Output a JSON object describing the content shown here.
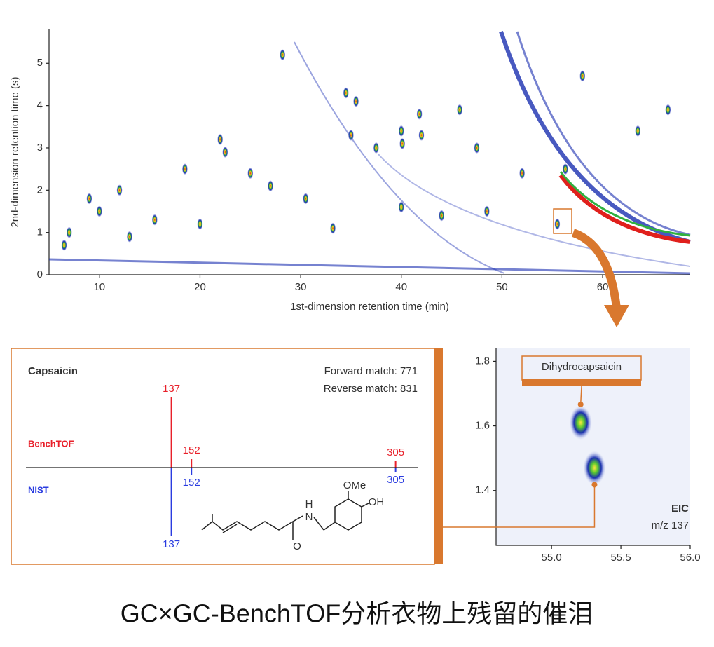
{
  "chart_data": [
    {
      "type": "heatmap",
      "x_label": "1st-dimension retention time (min)",
      "y_label": "2nd-dimension retention time (s)",
      "xlim": [
        5,
        68.7
      ],
      "ylim": [
        0,
        5.8
      ],
      "xticks": [
        10,
        20,
        30,
        40,
        50,
        60
      ],
      "yticks": [
        0,
        1,
        2,
        3,
        4,
        5
      ],
      "color": "#1a2fb0",
      "x": [
        28.2,
        34.5,
        35.5,
        41.8,
        45.8,
        40,
        40.1,
        42,
        37.5,
        47.5,
        35,
        22,
        22.5,
        18.5,
        25,
        27,
        9,
        12,
        10,
        52,
        56.3,
        33.2,
        40,
        30.5,
        66.5,
        63.5,
        58,
        55.5,
        13,
        7,
        6.5,
        15.5,
        20,
        44,
        48.5
      ],
      "values": [
        5.2,
        4.3,
        4.1,
        3.8,
        3.9,
        3.4,
        3.1,
        3.3,
        3,
        3,
        3.3,
        3.2,
        2.9,
        2.5,
        2.4,
        2.1,
        1.8,
        2,
        1.5,
        2.4,
        2.5,
        1.1,
        1.6,
        1.8,
        3.9,
        3.4,
        4.7,
        1.2,
        0.9,
        1,
        0.7,
        1.3,
        1.2,
        1.4,
        1.5
      ]
    },
    {
      "type": "spectrum",
      "title": "Capsaicin",
      "annotations": [
        "Forward match: 771",
        "Reverse match: 831"
      ],
      "xlim": [
        28,
        322
      ],
      "series": [
        {
          "name": "BenchTOF",
          "color": "#e8202a",
          "x": [
            137,
            152,
            305
          ],
          "values": [
            100,
            12,
            9
          ]
        },
        {
          "name": "NIST",
          "color": "#2a3ce0",
          "x": [
            137,
            152,
            305
          ],
          "values": [
            98,
            10,
            6
          ]
        }
      ],
      "structure_labels": [
        "OMe",
        "OH",
        "H",
        "N",
        "O"
      ]
    },
    {
      "type": "heatmap",
      "label": "Dihydrocapsaicin",
      "annotations": [
        "EIC",
        "m/z 137"
      ],
      "xlim": [
        54.6,
        56.0
      ],
      "ylim": [
        1.23,
        1.84
      ],
      "xticks": [
        {
          "value": 55,
          "label": "55.0"
        },
        55.5,
        {
          "value": 56,
          "label": "56.0"
        }
      ],
      "yticks": [
        1.4,
        1.6,
        1.8
      ],
      "color": "#1a2fb0",
      "x": [
        55.21,
        55.31
      ],
      "values": [
        1.61,
        1.47
      ]
    }
  ],
  "caption": "GC×GC-BenchTOF分析衣物上残留的催泪"
}
